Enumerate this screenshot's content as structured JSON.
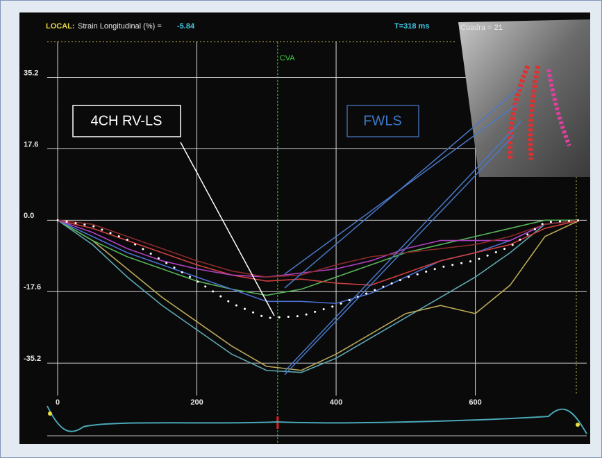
{
  "chart_data": {
    "type": "line",
    "local_label": "LOCAL:",
    "measure_label": "Strain Longitudinal (%) =",
    "measure_value": -5.84,
    "time_label": "T=318 ms",
    "frame_label": "Cuadra = 21",
    "cva_label": "CVA",
    "cva_x": 316,
    "annotations": [
      "4CH RV-LS",
      "FWLS"
    ],
    "x": [
      0,
      50,
      100,
      150,
      200,
      250,
      300,
      350,
      400,
      450,
      500,
      550,
      600,
      650,
      700,
      750
    ],
    "xlim": [
      -15,
      760
    ],
    "ylim": [
      -43.2,
      44
    ],
    "xticks": [
      0,
      200,
      400,
      600
    ],
    "yticks": [
      {
        "value": 35.2,
        "label": "35.2"
      },
      {
        "value": 17.6,
        "label": "17.6"
      },
      {
        "value": 0,
        "label": "0.0"
      },
      {
        "value": -17.6,
        "label": "-17.6"
      },
      {
        "value": -35.2,
        "label": "-35.2"
      }
    ],
    "grid": true,
    "series": [
      {
        "color": "#5fa8b5",
        "values": [
          0,
          -6,
          -14,
          -21,
          -27,
          -33,
          -37,
          -37.5,
          -34,
          -29,
          -24,
          -19,
          -14,
          -8,
          -1,
          0
        ]
      },
      {
        "color": "#b9a85a",
        "values": [
          0,
          -5,
          -12,
          -19,
          -25,
          -31,
          -36,
          -37,
          -33,
          -28,
          -23,
          -21,
          -23,
          -16,
          -4,
          0
        ]
      },
      {
        "color": "#58b45a",
        "values": [
          0,
          -5,
          -9,
          -12,
          -15,
          -17,
          -18.5,
          -17,
          -14,
          -11,
          -8,
          -6,
          -4,
          -2,
          0,
          0
        ]
      },
      {
        "color": "#4a6fd0",
        "values": [
          0,
          -4,
          -8,
          -11,
          -14,
          -17,
          -20,
          -20,
          -20.5,
          -18,
          -14,
          -10,
          -8,
          -5,
          -1,
          0
        ]
      },
      {
        "color": "#d04040",
        "values": [
          0,
          -2,
          -5,
          -8,
          -11,
          -13.5,
          -15,
          -14.5,
          -15.5,
          -16,
          -13,
          -10,
          -8,
          -6,
          -2,
          0
        ]
      },
      {
        "color": "#b040c0",
        "values": [
          0,
          -3,
          -7,
          -10,
          -12,
          -13.5,
          -14,
          -13,
          -12,
          -10,
          -7,
          -5,
          -5,
          -5,
          -1,
          0
        ]
      },
      {
        "color": "#8a2a2a",
        "values": [
          0,
          -1,
          -4,
          -7,
          -10,
          -12.5,
          -14,
          -13.5,
          -11,
          -9,
          -8,
          -7,
          -6,
          -4,
          -1,
          0
        ]
      },
      {
        "color": "#ffffff",
        "dotted": true,
        "values": [
          0,
          -1.4,
          -4.8,
          -9.9,
          -15,
          -20.5,
          -24.1,
          -23.6,
          -21,
          -17.6,
          -14.2,
          -11.6,
          -9.9,
          -6.5,
          -0.5,
          0
        ]
      }
    ]
  }
}
